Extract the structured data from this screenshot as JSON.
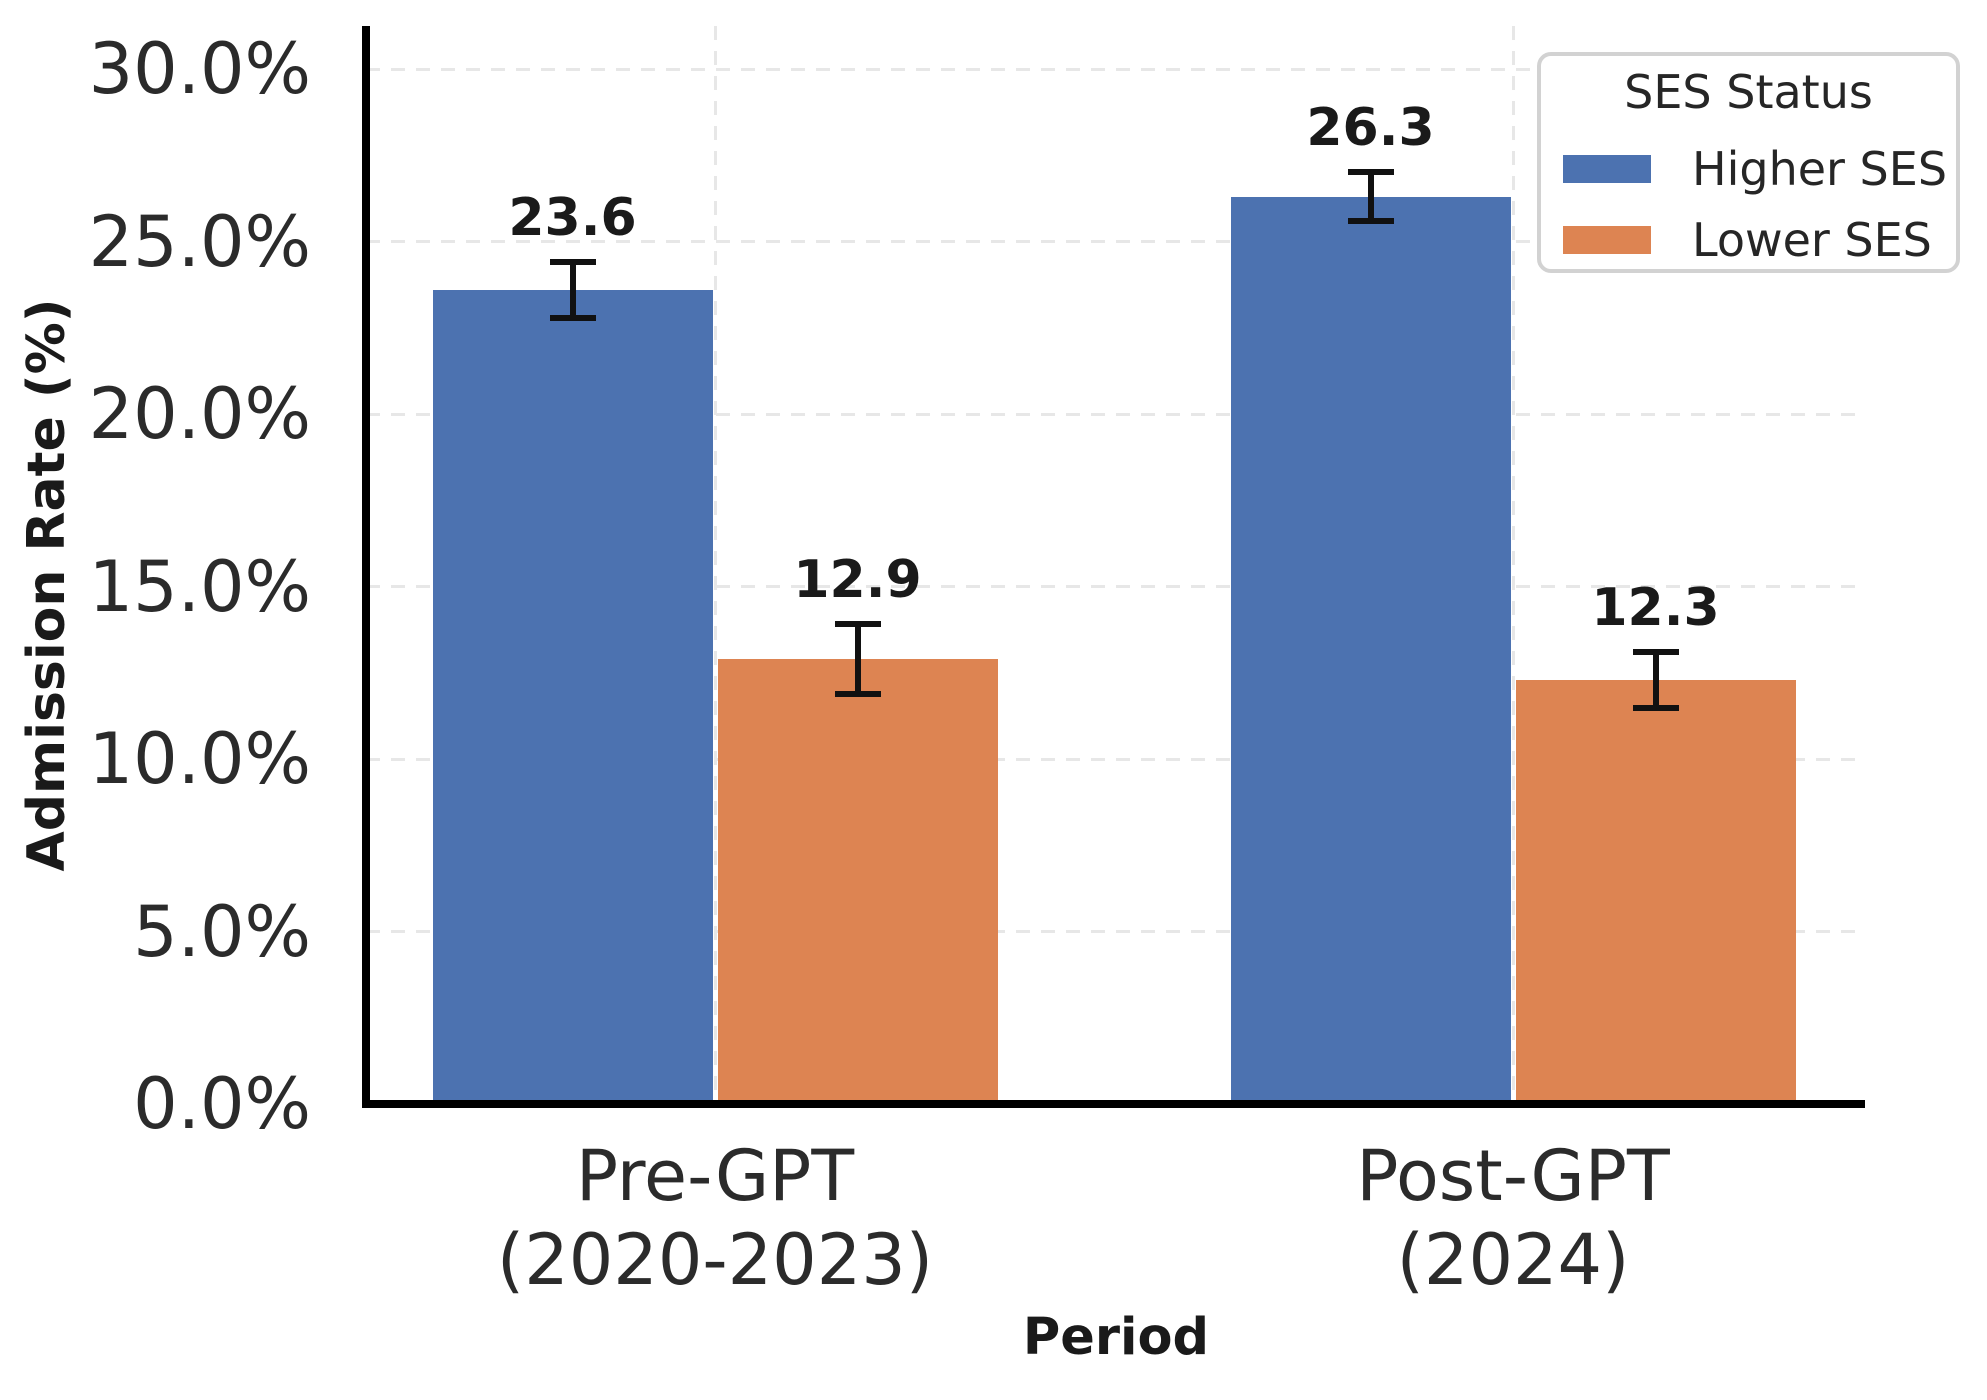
{
  "figure": {
    "background": "#ffffff"
  },
  "chart_data": {
    "type": "bar",
    "title": "",
    "xlabel": "Period",
    "ylabel": "Admission Rate (%)",
    "categories": [
      "Pre-GPT\n(2020-2023)",
      "Post-GPT\n(2024)"
    ],
    "series": [
      {
        "name": "Higher SES",
        "color": "#4C72B0",
        "values": [
          23.6,
          26.3
        ],
        "errors": [
          0.9,
          0.8
        ],
        "labels": [
          "23.6",
          "26.3"
        ]
      },
      {
        "name": "Lower SES",
        "color": "#DD8452",
        "values": [
          12.9,
          12.3
        ],
        "errors": [
          1.1,
          0.9
        ],
        "labels": [
          "12.9",
          "12.3"
        ]
      }
    ],
    "yticks": [
      {
        "value": 0,
        "label": "0.0%"
      },
      {
        "value": 5,
        "label": "5.0%"
      },
      {
        "value": 10,
        "label": "10.0%"
      },
      {
        "value": 15,
        "label": "15.0%"
      },
      {
        "value": 20,
        "label": "20.0%"
      },
      {
        "value": 25,
        "label": "25.0%"
      },
      {
        "value": 30,
        "label": "30.0%"
      }
    ],
    "ylim": [
      0,
      31.25
    ],
    "grid": {
      "horizontal": true,
      "vertical": true,
      "style": "dashed",
      "color": "#e7e7e7"
    },
    "legend": {
      "title": "SES Status",
      "position": "upper right"
    },
    "colors": {
      "error_bar": "#111111",
      "spine": "#000000",
      "tick_text": "#2b2b2b",
      "label_text": "#1a1a1a"
    }
  }
}
